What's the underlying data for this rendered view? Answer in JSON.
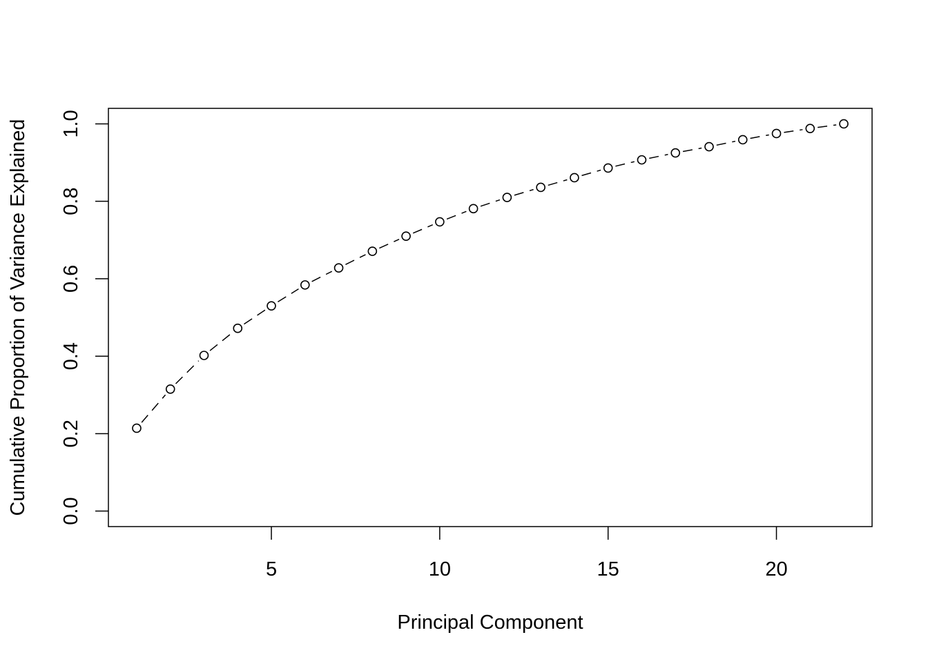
{
  "chart_data": {
    "type": "line",
    "title": "",
    "xlabel": "Principal Component",
    "ylabel": "Cumulative Proportion of Variance Explained",
    "x": [
      1,
      2,
      3,
      4,
      5,
      6,
      7,
      8,
      9,
      10,
      11,
      12,
      13,
      14,
      15,
      16,
      17,
      18,
      19,
      20,
      21,
      22
    ],
    "values": [
      0.214,
      0.315,
      0.402,
      0.472,
      0.53,
      0.584,
      0.628,
      0.671,
      0.71,
      0.747,
      0.781,
      0.81,
      0.836,
      0.861,
      0.886,
      0.907,
      0.925,
      0.941,
      0.959,
      0.975,
      0.988,
      1.0
    ],
    "xlim": [
      0.16,
      22.84
    ],
    "ylim": [
      -0.04,
      1.04
    ],
    "xticks": [
      "5",
      "10",
      "15",
      "20"
    ],
    "xtick_values": [
      5,
      10,
      15,
      20
    ],
    "yticks": [
      "0.0",
      "0.2",
      "0.4",
      "0.6",
      "0.8",
      "1.0"
    ],
    "ytick_values": [
      0,
      0.2,
      0.4,
      0.6,
      0.8,
      1.0
    ],
    "line_style": "dashed",
    "marker": "open-circle",
    "grid": false,
    "color": "#000000"
  }
}
